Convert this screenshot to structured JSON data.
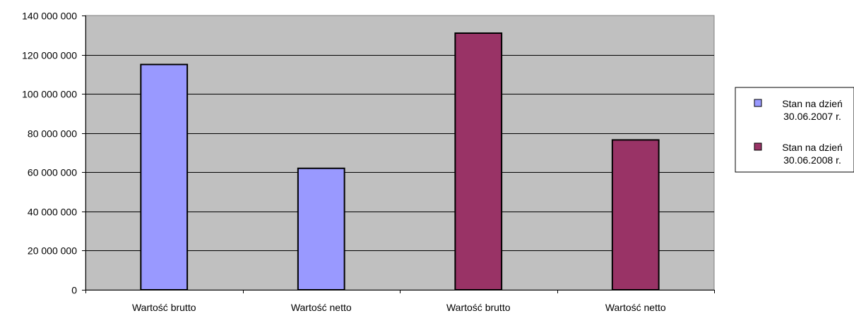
{
  "chart_data": {
    "type": "bar",
    "categories": [
      "Wartość brutto",
      "Wartość netto",
      "Wartość brutto",
      "Wartość netto"
    ],
    "series": [
      {
        "name_lines": [
          "Stan na dzień",
          "30.06.2007 r."
        ],
        "color": "#9999ff",
        "values": [
          115000000,
          62000000,
          null,
          null
        ]
      },
      {
        "name_lines": [
          "Stan na dzień",
          "30.06.2008 r."
        ],
        "color": "#993366",
        "values": [
          null,
          null,
          131000000,
          76500000
        ]
      }
    ],
    "y_ticks": [
      "0",
      "20 000 000",
      "40 000 000",
      "60 000 000",
      "80 000 000",
      "100 000 000",
      "120 000 000",
      "140 000 000"
    ],
    "ylim": [
      0,
      140000000
    ],
    "grid": true,
    "plot_background": "#c0c0c0",
    "legend_position": "right",
    "title": "",
    "xlabel": "",
    "ylabel": ""
  }
}
